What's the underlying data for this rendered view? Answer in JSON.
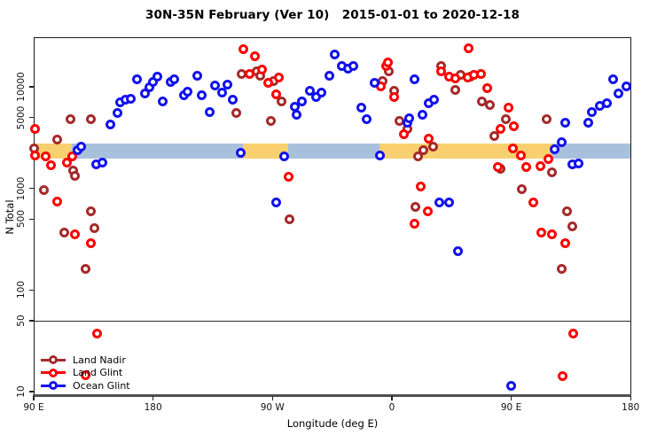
{
  "chart_data": {
    "type": "scatter",
    "title": "30N-35N February (Ver 10)   2015-01-01 to 2020-12-18",
    "xlabel": "Longitude (deg E)",
    "ylabel": "N Total",
    "x_axis": {
      "range_deg": [
        90,
        540
      ],
      "ticks": [
        {
          "value": 90,
          "label": "90 E"
        },
        {
          "value": 180,
          "label": "180"
        },
        {
          "value": 270,
          "label": "90 W"
        },
        {
          "value": 360,
          "label": "0"
        },
        {
          "value": 450,
          "label": "90 E"
        },
        {
          "value": 540,
          "label": "180"
        }
      ]
    },
    "y_axis": {
      "scale": "log",
      "range": [
        9,
        30800
      ],
      "ticks": [
        {
          "value": 10000,
          "label": "10000"
        },
        {
          "value": 5000,
          "label": "5000"
        },
        {
          "value": 1000,
          "label": "1000"
        },
        {
          "value": 500,
          "label": "500"
        },
        {
          "value": 100,
          "label": "100"
        },
        {
          "value": 50,
          "label": "50"
        },
        {
          "value": 10,
          "label": "10"
        }
      ]
    },
    "reference_line_y": 50,
    "coverage_band": {
      "n_range": [
        1950,
        2750
      ],
      "land_color": "#F8D070",
      "ocean_color": "#A8C0DC",
      "segments": [
        {
          "from_deg": 90,
          "to_deg": 119,
          "surface": "land"
        },
        {
          "from_deg": 119,
          "to_deg": 248,
          "surface": "ocean"
        },
        {
          "from_deg": 248,
          "to_deg": 282,
          "surface": "land"
        },
        {
          "from_deg": 282,
          "to_deg": 351,
          "surface": "ocean"
        },
        {
          "from_deg": 351,
          "to_deg": 481,
          "surface": "land"
        },
        {
          "from_deg": 481,
          "to_deg": 540,
          "surface": "ocean"
        }
      ]
    },
    "legend": {
      "position": "bottom-left"
    },
    "series": [
      {
        "name": "Land Nadir",
        "color": "#A52A2A",
        "points": [
          [
            90,
            2480
          ],
          [
            98,
            955
          ],
          [
            108,
            3050
          ],
          [
            113,
            371
          ],
          [
            118,
            4760
          ],
          [
            120,
            1510
          ],
          [
            121,
            1340
          ],
          [
            129,
            163
          ],
          [
            133,
            4850
          ],
          [
            133,
            600
          ],
          [
            136,
            410
          ],
          [
            243,
            5580
          ],
          [
            247,
            13500
          ],
          [
            258,
            14350
          ],
          [
            261,
            12970
          ],
          [
            269,
            4590
          ],
          [
            271,
            11500
          ],
          [
            277,
            7110
          ],
          [
            283,
            501
          ],
          [
            353,
            11500
          ],
          [
            358,
            14350
          ],
          [
            362,
            9200
          ],
          [
            366,
            4590
          ],
          [
            372,
            3820
          ],
          [
            378,
            655
          ],
          [
            380,
            2050
          ],
          [
            384,
            2360
          ],
          [
            391,
            2600
          ],
          [
            397,
            15900
          ],
          [
            408,
            9300
          ],
          [
            412,
            13200
          ],
          [
            419,
            12700
          ],
          [
            428,
            7110
          ],
          [
            434,
            6600
          ],
          [
            437,
            3250
          ],
          [
            442,
            1560
          ],
          [
            446,
            4760
          ],
          [
            458,
            975
          ],
          [
            477,
            4760
          ],
          [
            481,
            1430
          ],
          [
            488,
            163
          ],
          [
            492,
            590
          ],
          [
            496,
            420
          ]
        ]
      },
      {
        "name": "Land Glint",
        "color": "#FF0000",
        "points": [
          [
            91,
            3890
          ],
          [
            91,
            2130
          ],
          [
            99,
            2050
          ],
          [
            103,
            1680
          ],
          [
            108,
            750
          ],
          [
            115,
            1810
          ],
          [
            119,
            2050
          ],
          [
            121,
            357
          ],
          [
            129,
            14.5
          ],
          [
            133,
            292
          ],
          [
            138,
            37
          ],
          [
            248,
            23700
          ],
          [
            253,
            13500
          ],
          [
            257,
            19800
          ],
          [
            262,
            14650
          ],
          [
            267,
            11000
          ],
          [
            273,
            8500
          ],
          [
            275,
            12400
          ],
          [
            282,
            1310
          ],
          [
            352,
            10200
          ],
          [
            356,
            15900
          ],
          [
            357,
            17500
          ],
          [
            362,
            7860
          ],
          [
            369,
            3390
          ],
          [
            377,
            454
          ],
          [
            382,
            1055
          ],
          [
            387,
            595
          ],
          [
            388,
            3120
          ],
          [
            397,
            14100
          ],
          [
            403,
            12700
          ],
          [
            408,
            12200
          ],
          [
            417,
            12400
          ],
          [
            418,
            24100
          ],
          [
            422,
            13200
          ],
          [
            427,
            13500
          ],
          [
            432,
            9610
          ],
          [
            440,
            1640
          ],
          [
            442,
            3820
          ],
          [
            448,
            6200
          ],
          [
            451,
            2500
          ],
          [
            452,
            4060
          ],
          [
            457,
            2090
          ],
          [
            461,
            1640
          ],
          [
            467,
            735
          ],
          [
            472,
            1660
          ],
          [
            473,
            371
          ],
          [
            478,
            1930
          ],
          [
            481,
            357
          ],
          [
            489,
            14.3
          ],
          [
            491,
            292
          ],
          [
            497,
            37
          ]
        ]
      },
      {
        "name": "Ocean Glint",
        "color": "#1212EE",
        "points": [
          [
            123,
            2360
          ],
          [
            126,
            2600
          ],
          [
            137,
            1740
          ],
          [
            142,
            1810
          ],
          [
            148,
            4300
          ],
          [
            153,
            5580
          ],
          [
            155,
            6970
          ],
          [
            159,
            7400
          ],
          [
            163,
            7630
          ],
          [
            168,
            11750
          ],
          [
            174,
            8530
          ],
          [
            177,
            10000
          ],
          [
            180,
            11200
          ],
          [
            183,
            12700
          ],
          [
            187,
            7110
          ],
          [
            193,
            11200
          ],
          [
            196,
            11750
          ],
          [
            203,
            8200
          ],
          [
            206,
            9000
          ],
          [
            213,
            12970
          ],
          [
            217,
            8200
          ],
          [
            223,
            5700
          ],
          [
            227,
            10400
          ],
          [
            232,
            8690
          ],
          [
            236,
            10620
          ],
          [
            240,
            7400
          ],
          [
            246,
            2220
          ],
          [
            273,
            735
          ],
          [
            279,
            2050
          ],
          [
            287,
            6350
          ],
          [
            288,
            5360
          ],
          [
            292,
            7250
          ],
          [
            298,
            9200
          ],
          [
            303,
            8000
          ],
          [
            307,
            8690
          ],
          [
            313,
            12970
          ],
          [
            317,
            21000
          ],
          [
            322,
            15900
          ],
          [
            327,
            15000
          ],
          [
            331,
            15900
          ],
          [
            337,
            6200
          ],
          [
            341,
            4760
          ],
          [
            347,
            11000
          ],
          [
            351,
            2090
          ],
          [
            372,
            4400
          ],
          [
            373,
            4950
          ],
          [
            377,
            11950
          ],
          [
            383,
            5360
          ],
          [
            388,
            6830
          ],
          [
            392,
            7400
          ],
          [
            396,
            735
          ],
          [
            403,
            728
          ],
          [
            410,
            239
          ],
          [
            450,
            11.5
          ],
          [
            483,
            2450
          ],
          [
            488,
            2830
          ],
          [
            491,
            4470
          ],
          [
            496,
            1720
          ],
          [
            501,
            1770
          ],
          [
            508,
            4400
          ],
          [
            511,
            5700
          ],
          [
            517,
            6500
          ],
          [
            522,
            6900
          ],
          [
            527,
            11750
          ],
          [
            531,
            8530
          ],
          [
            537,
            10200
          ]
        ]
      }
    ]
  }
}
